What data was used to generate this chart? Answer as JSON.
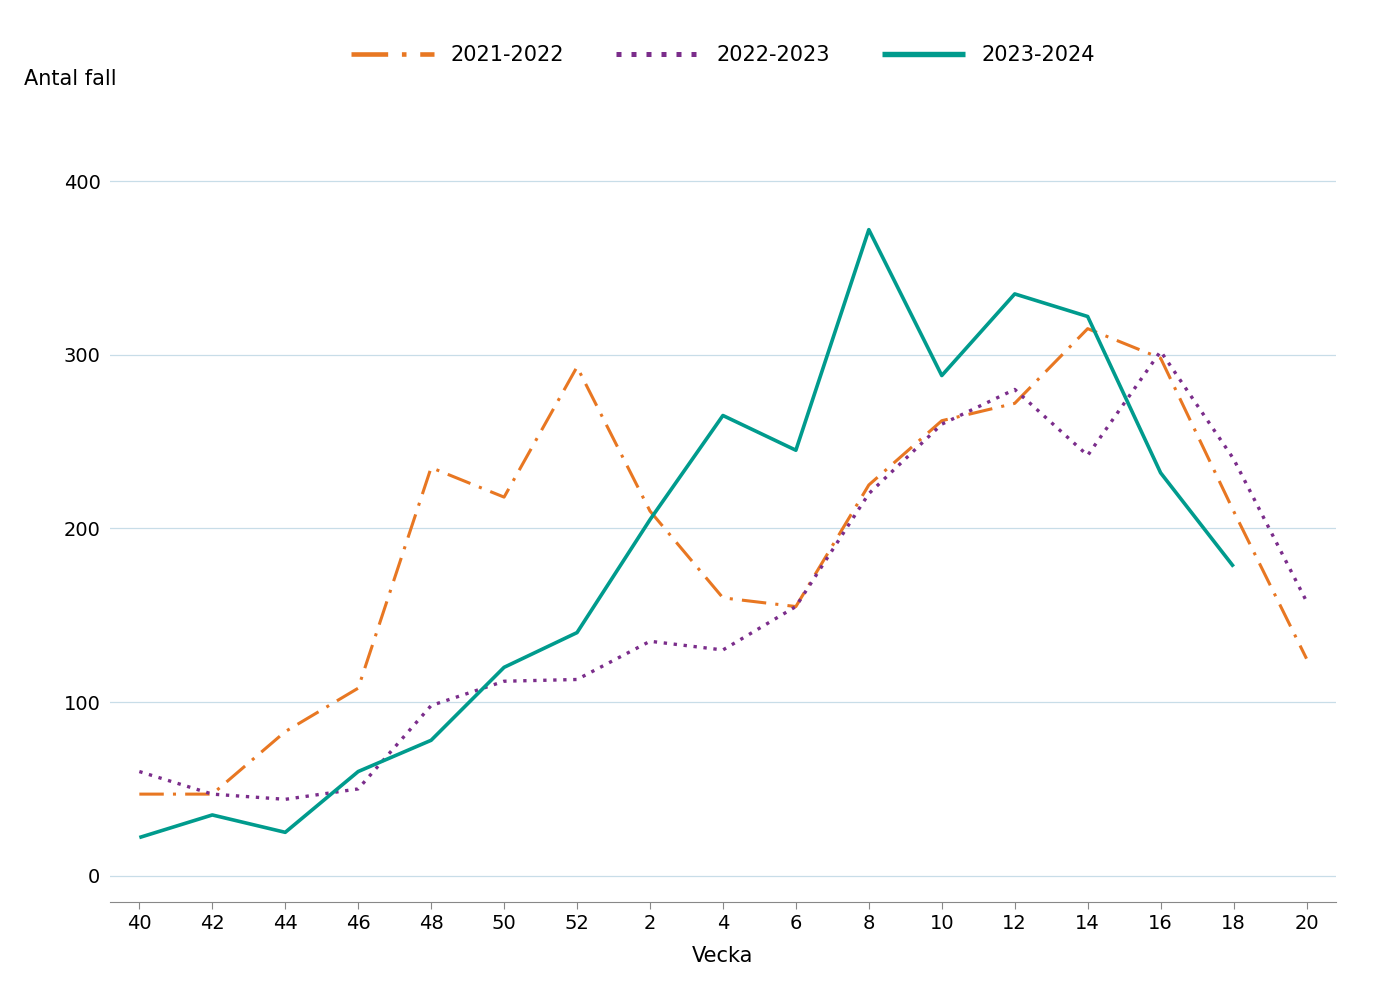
{
  "x_ticks": [
    40,
    42,
    44,
    46,
    48,
    50,
    52,
    2,
    4,
    6,
    8,
    10,
    12,
    14,
    16,
    18,
    20
  ],
  "x_positions": [
    0,
    1,
    2,
    3,
    4,
    5,
    6,
    7,
    8,
    9,
    10,
    11,
    12,
    13,
    14,
    15,
    16
  ],
  "series": {
    "2021-2022": {
      "color": "#E87722",
      "linestyle": "dashdot",
      "linewidth": 2.2,
      "values": [
        47,
        47,
        83,
        108,
        235,
        218,
        293,
        210,
        160,
        155,
        225,
        262,
        272,
        315,
        298,
        210,
        125
      ]
    },
    "2022-2023": {
      "color": "#7B2D8B",
      "linestyle": "dotted",
      "linewidth": 2.4,
      "values": [
        60,
        47,
        44,
        50,
        98,
        112,
        113,
        135,
        130,
        155,
        220,
        260,
        280,
        242,
        302,
        240,
        158
      ]
    },
    "2023-2024": {
      "color": "#009B8D",
      "linestyle": "solid",
      "linewidth": 2.6,
      "values": [
        22,
        35,
        25,
        60,
        78,
        120,
        140,
        205,
        265,
        245,
        372,
        288,
        335,
        322,
        232,
        178,
        null
      ]
    }
  },
  "ylabel": "Antal fall",
  "xlabel": "Vecka",
  "ylim": [
    -15,
    435
  ],
  "yticks": [
    0,
    100,
    200,
    300,
    400
  ],
  "background_color": "#ffffff",
  "grid_color": "#c8dde8",
  "axis_fontsize": 15,
  "tick_fontsize": 14,
  "legend_fontsize": 15
}
